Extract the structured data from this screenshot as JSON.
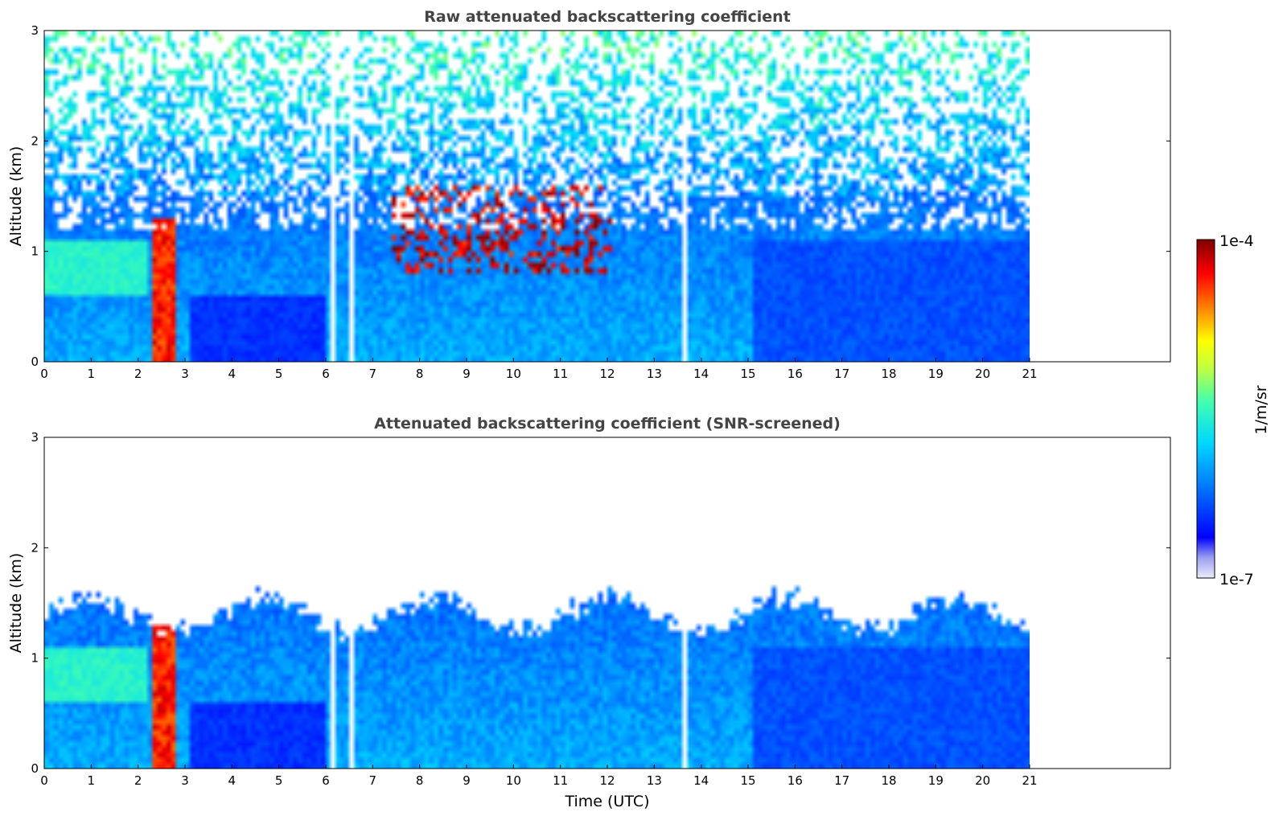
{
  "chart_data": [
    {
      "type": "heatmap",
      "title": "Raw attenuated backscattering coefficient",
      "xlabel": "",
      "ylabel": "Altitude (km)",
      "xlim": [
        0,
        24
      ],
      "ylim": [
        0,
        3
      ],
      "xticks": [
        "0",
        "1",
        "2",
        "3",
        "4",
        "5",
        "6",
        "7",
        "8",
        "9",
        "10",
        "11",
        "12",
        "13",
        "14",
        "15",
        "16",
        "17",
        "18",
        "19",
        "20",
        "21"
      ],
      "yticks": [
        "0",
        "1",
        "2",
        "3"
      ],
      "data_end_x": 21,
      "features": {
        "mixed_layer_top_km": 1.0,
        "cloud_layer_km": [
          0.8,
          1.6
        ],
        "cloud_time_range": [
          7.4,
          12.0
        ],
        "data_gaps_utc": [
          6.1,
          6.5,
          13.6
        ]
      }
    },
    {
      "type": "heatmap",
      "title": "Attenuated backscattering coefficient (SNR-screened)",
      "xlabel": "Time (UTC)",
      "ylabel": "Altitude (km)",
      "xlim": [
        0,
        24
      ],
      "ylim": [
        0,
        3
      ],
      "xticks": [
        "0",
        "1",
        "2",
        "3",
        "4",
        "5",
        "6",
        "7",
        "8",
        "9",
        "10",
        "11",
        "12",
        "13",
        "14",
        "15",
        "16",
        "17",
        "18",
        "19",
        "20",
        "21"
      ],
      "yticks": [
        "0",
        "1",
        "2",
        "3"
      ],
      "data_end_x": 21,
      "features": {
        "signal_top_km": 1.4,
        "cloud_layer_km": [
          0.8,
          1.6
        ],
        "data_gaps_utc": [
          6.1,
          6.5,
          13.6
        ]
      }
    }
  ],
  "colorbar": {
    "label": "1/m/sr",
    "max_label": "1e-4",
    "min_label": "1e-7",
    "scale": "log",
    "colormap": [
      "#7f0000",
      "#ff0000",
      "#ff8000",
      "#ffff00",
      "#80ff80",
      "#00ffff",
      "#0080ff",
      "#0000ff",
      "#e6e6ff"
    ]
  }
}
